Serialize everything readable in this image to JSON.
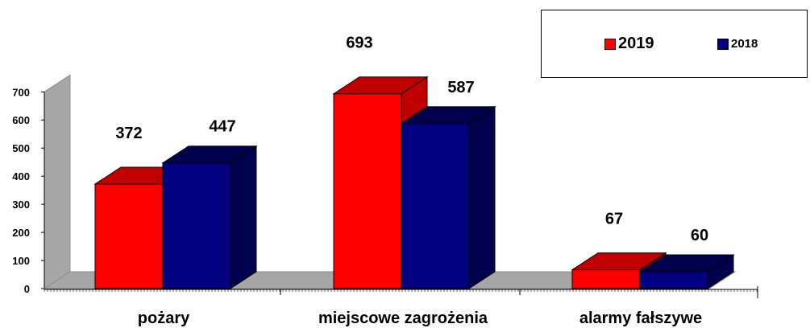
{
  "chart_data": {
    "type": "bar",
    "categories": [
      "pożary",
      "miejscowe zagrożenia",
      "alarmy fałszywe"
    ],
    "series": [
      {
        "name": "2019",
        "values": [
          372,
          693,
          67
        ],
        "color": "#ff0000",
        "shade": "#c00000"
      },
      {
        "name": "2018",
        "values": [
          447,
          587,
          60
        ],
        "color": "#000080",
        "shade": "#00004d"
      }
    ],
    "y_ticks": [
      "0",
      "100",
      "200",
      "300",
      "400",
      "500",
      "600",
      "700"
    ],
    "ylim": [
      0,
      700
    ],
    "grid": false,
    "legend_position": "top-right",
    "wall_color": "#a6a6a6"
  }
}
